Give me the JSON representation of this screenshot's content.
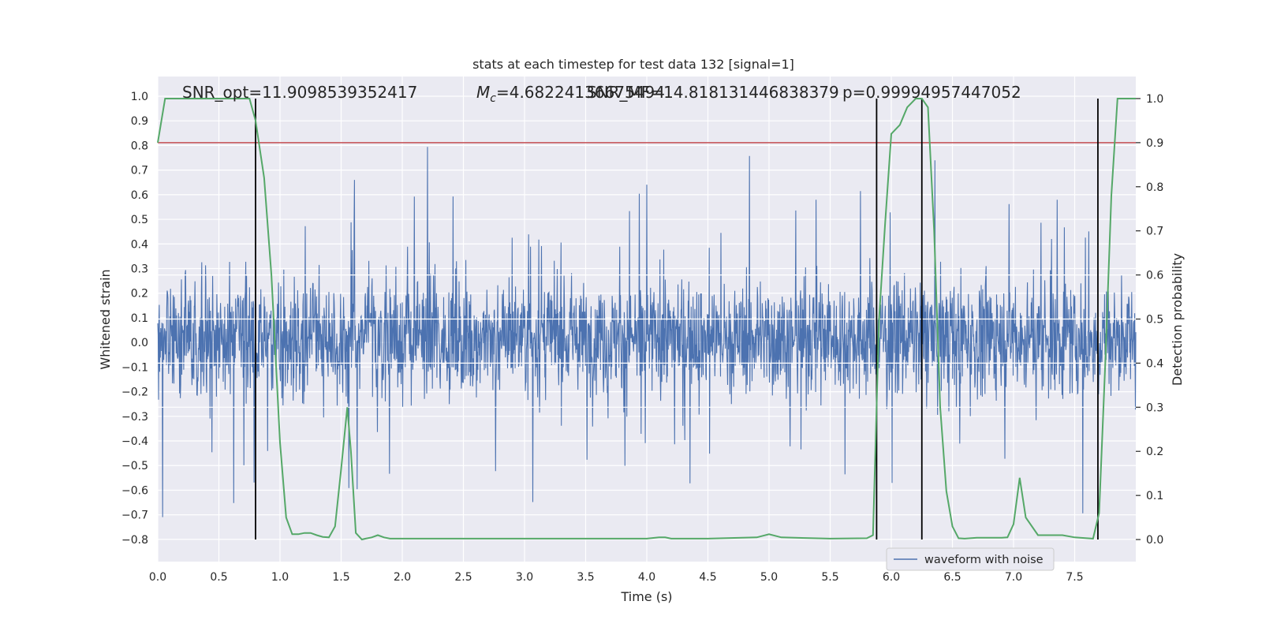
{
  "chart_data": {
    "type": "line",
    "title": "stats at each timestep for test data 132 [signal=1]",
    "xlabel": "Time (s)",
    "ylabel_left": "Whitened strain",
    "ylabel_right": "Detection probability",
    "xlim": [
      0.0,
      8.0
    ],
    "ylim_left": [
      -0.89,
      1.08
    ],
    "ylim_right": [
      -0.05,
      1.05
    ],
    "x_ticks": [
      "0.0",
      "0.5",
      "1.0",
      "1.5",
      "2.0",
      "2.5",
      "3.0",
      "3.5",
      "4.0",
      "4.5",
      "5.0",
      "5.5",
      "6.0",
      "6.5",
      "7.0",
      "7.5"
    ],
    "left_ticks": [
      "1.0",
      "0.9",
      "0.8",
      "0.7",
      "0.6",
      "0.5",
      "0.4",
      "0.3",
      "0.2",
      "0.1",
      "0.0",
      "−0.1",
      "−0.2",
      "−0.3",
      "−0.4",
      "−0.5",
      "−0.6",
      "−0.7",
      "−0.8"
    ],
    "right_ticks": [
      "1.0",
      "0.9",
      "0.8",
      "0.7",
      "0.6",
      "0.5",
      "0.4",
      "0.3",
      "0.2",
      "0.1",
      "0.0"
    ],
    "grid": true,
    "legend_position": "lower-right",
    "colors": {
      "waveform": "#4c72b0",
      "probability": "#55a868",
      "threshold": "#c44e52",
      "markers": "#000000",
      "background": "#eaeaf2",
      "grid": "#ffffff"
    },
    "annotations": {
      "snr_opt": "SNR_opt=11.9098539352417",
      "mc_prefix": "M",
      "mc_sub": "c",
      "mc_value": "=4.68224136675494",
      "snr_mf": "SNR_MF=14.818131446838379",
      "p": "p=0.99994957447052"
    },
    "series": [
      {
        "name": "waveform with noise",
        "axis": "left",
        "description": "dense whitened-strain noise, roughly within [-0.8, 1.0], centred on 0"
      },
      {
        "axis": "right",
        "x": [
          0.0,
          0.06,
          0.12,
          0.2,
          0.3,
          0.4,
          0.5,
          0.6,
          0.7,
          0.75,
          0.8,
          0.87,
          0.93,
          1.0,
          1.05,
          1.1,
          1.15,
          1.2,
          1.25,
          1.3,
          1.35,
          1.4,
          1.45,
          1.5,
          1.55,
          1.58,
          1.62,
          1.67,
          1.7,
          1.75,
          1.8,
          1.85,
          1.9,
          2.0,
          2.5,
          3.0,
          3.5,
          4.0,
          4.1,
          4.15,
          4.2,
          4.5,
          4.9,
          5.0,
          5.1,
          5.5,
          5.8,
          5.85,
          5.9,
          5.95,
          6.0,
          6.07,
          6.13,
          6.2,
          6.25,
          6.3,
          6.35,
          6.4,
          6.45,
          6.5,
          6.55,
          6.6,
          6.7,
          6.8,
          6.9,
          6.95,
          7.0,
          7.05,
          7.1,
          7.2,
          7.3,
          7.4,
          7.5,
          7.6,
          7.65,
          7.7,
          7.75,
          7.8,
          7.85,
          7.9,
          8.0
        ],
        "y": [
          0.9,
          1.0,
          1.0,
          1.0,
          1.0,
          1.0,
          1.0,
          1.0,
          1.0,
          1.0,
          0.95,
          0.82,
          0.6,
          0.22,
          0.05,
          0.012,
          0.012,
          0.015,
          0.015,
          0.01,
          0.006,
          0.005,
          0.03,
          0.16,
          0.3,
          0.2,
          0.015,
          0.0,
          0.002,
          0.005,
          0.01,
          0.005,
          0.002,
          0.002,
          0.002,
          0.002,
          0.002,
          0.002,
          0.005,
          0.005,
          0.002,
          0.002,
          0.005,
          0.012,
          0.005,
          0.002,
          0.003,
          0.01,
          0.5,
          0.72,
          0.92,
          0.94,
          0.98,
          1.0,
          1.0,
          0.98,
          0.7,
          0.3,
          0.11,
          0.03,
          0.003,
          0.002,
          0.004,
          0.004,
          0.004,
          0.005,
          0.035,
          0.14,
          0.05,
          0.01,
          0.01,
          0.01,
          0.005,
          0.003,
          0.002,
          0.06,
          0.4,
          0.78,
          1.0,
          1.0,
          1.0
        ]
      }
    ],
    "threshold_value": 0.9,
    "vertical_markers": [
      0.8,
      5.88,
      6.25,
      7.69
    ]
  }
}
